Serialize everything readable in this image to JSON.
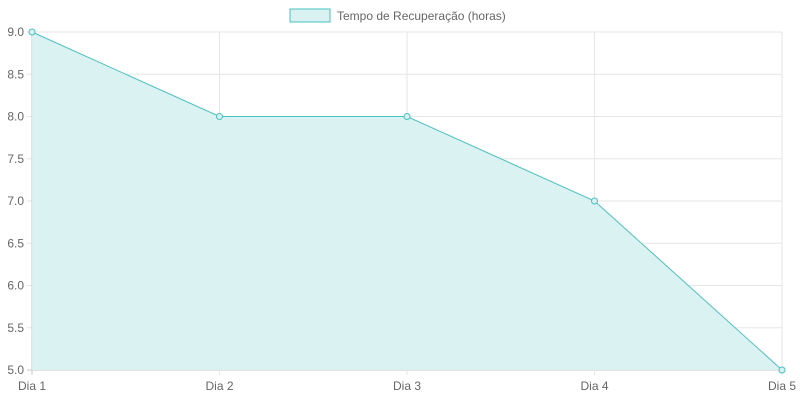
{
  "chart_data": {
    "type": "area",
    "categories": [
      "Dia 1",
      "Dia 2",
      "Dia 3",
      "Dia 4",
      "Dia 5"
    ],
    "series": [
      {
        "name": "Tempo de Recuperação (horas)",
        "values": [
          9,
          8,
          8,
          7,
          5
        ]
      }
    ],
    "ylim": [
      5,
      9
    ],
    "yticks": [
      "5.0",
      "5.5",
      "6.0",
      "6.5",
      "7.0",
      "7.5",
      "8.0",
      "8.5",
      "9.0"
    ],
    "grid": true,
    "legend_position": "top-center",
    "colors": {
      "line": "#4bc0c0",
      "fill": "#d9f1f1",
      "grid": "#e6e6e6",
      "axis": "#c9c9c9",
      "text": "#666666"
    }
  }
}
